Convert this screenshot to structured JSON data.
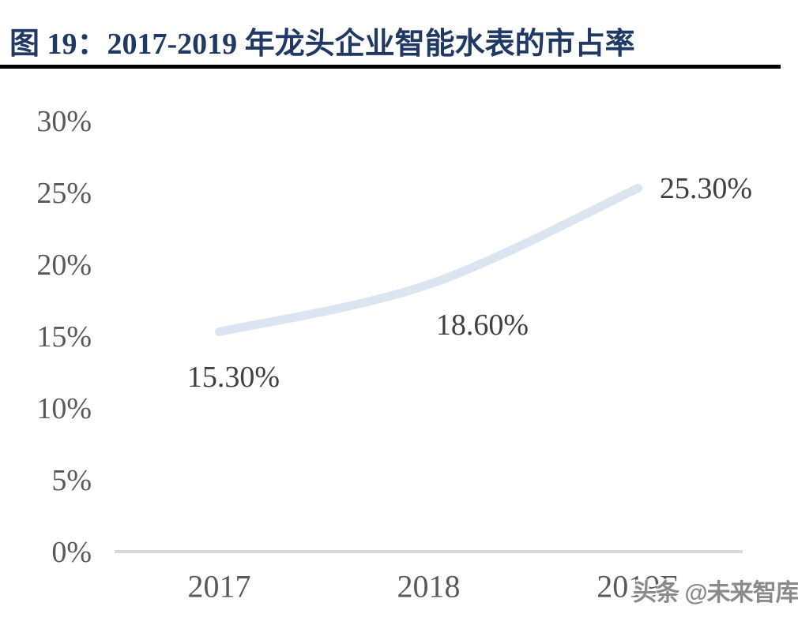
{
  "title": "图 19：2017-2019 年龙头企业智能水表的市占率",
  "watermark": "头条 @未来智库",
  "colors": {
    "title_text": "#1f3864",
    "separator": "#000000",
    "series_line": "#dbe5f1",
    "axis_line": "#d9d9d9",
    "tick_text": "#595959",
    "data_label_text": "#404040",
    "watermark_text": "#8a8a8a"
  },
  "chart_data": {
    "type": "line",
    "title": "图 19：2017-2019 年龙头企业智能水表的市占率",
    "categories": [
      "2017",
      "2018",
      "2019E"
    ],
    "values": [
      15.3,
      18.6,
      25.3
    ],
    "point_labels": [
      "15.30%",
      "18.60%",
      "25.30%"
    ],
    "y_ticks": [
      {
        "value": 30,
        "label": "30%"
      },
      {
        "value": 25,
        "label": "25%"
      },
      {
        "value": 20,
        "label": "20%"
      },
      {
        "value": 15,
        "label": "15%"
      },
      {
        "value": 10,
        "label": "10%"
      },
      {
        "value": 5,
        "label": "5%"
      },
      {
        "value": 0,
        "label": "0%"
      }
    ],
    "xlabel": "",
    "ylabel": "",
    "ylim": [
      0,
      30
    ],
    "grid": false,
    "legend": false
  }
}
